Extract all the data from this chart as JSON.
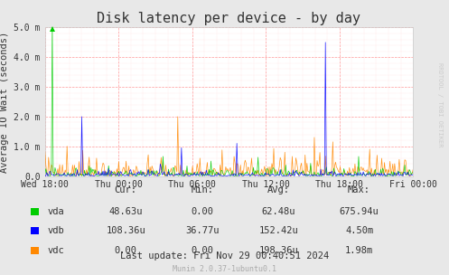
{
  "title": "Disk latency per device - by day",
  "ylabel": "Average IO Wait (seconds)",
  "background_color": "#e8e8e8",
  "plot_bg_color": "#ffffff",
  "grid_color": "#ff9999",
  "grid_minor_color": "#ffcccc",
  "title_fontsize": 11,
  "label_fontsize": 7.5,
  "tick_fontsize": 7,
  "xtick_labels": [
    "Wed 18:00",
    "Thu 00:00",
    "Thu 06:00",
    "Thu 12:00",
    "Thu 18:00",
    "Fri 00:00"
  ],
  "ytick_labels": [
    "0.0",
    "1.0 m",
    "2.0 m",
    "3.0 m",
    "4.0 m",
    "5.0 m"
  ],
  "ytick_values": [
    0.0,
    0.001,
    0.002,
    0.003,
    0.004,
    0.005
  ],
  "ylim": [
    0,
    0.005
  ],
  "colors": {
    "vda": "#00cc00",
    "vdb": "#0000ff",
    "vdc": "#ff8800"
  },
  "stats": {
    "vda": {
      "cur": "48.63u",
      "min": "0.00",
      "avg": "62.48u",
      "max": "675.94u"
    },
    "vdb": {
      "cur": "108.36u",
      "min": "36.77u",
      "avg": "152.42u",
      "max": "4.50m"
    },
    "vdc": {
      "cur": "0.00",
      "min": "0.00",
      "avg": "198.36u",
      "max": "1.98m"
    }
  },
  "footer": "Munin 2.0.37-1ubuntu0.1",
  "last_update": "Last update: Fri Nov 29 00:40:51 2024",
  "watermark": "RRDTOOL / TOBI OETIKER",
  "n_points": 400
}
